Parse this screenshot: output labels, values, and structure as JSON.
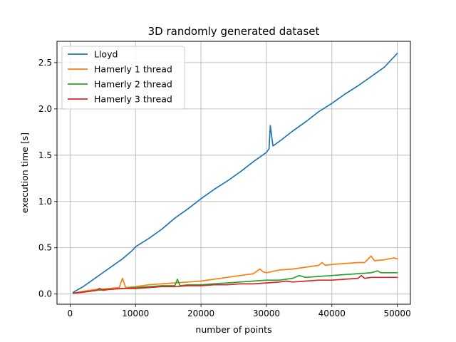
{
  "chart_data": {
    "type": "line",
    "title": "3D randomly generated dataset",
    "xlabel": "number of points",
    "ylabel": "execution time [s]",
    "xlim": [
      -2000,
      52000
    ],
    "ylim": [
      -0.11,
      2.73
    ],
    "xticks": [
      0,
      10000,
      20000,
      30000,
      40000,
      50000
    ],
    "xtick_labels": [
      "0",
      "10000",
      "20000",
      "30000",
      "40000",
      "50000"
    ],
    "yticks": [
      0.0,
      0.5,
      1.0,
      1.5,
      2.0,
      2.5
    ],
    "ytick_labels": [
      "0.0",
      "0.5",
      "1.0",
      "1.5",
      "2.0",
      "2.5"
    ],
    "grid": true,
    "legend_position": "top-left",
    "series": [
      {
        "name": "Lloyd",
        "color": "#1f77b4",
        "points": [
          [
            500,
            0.02
          ],
          [
            2000,
            0.08
          ],
          [
            4000,
            0.18
          ],
          [
            6000,
            0.28
          ],
          [
            8000,
            0.38
          ],
          [
            9500,
            0.47
          ],
          [
            10000,
            0.51
          ],
          [
            12000,
            0.6
          ],
          [
            14000,
            0.7
          ],
          [
            16000,
            0.82
          ],
          [
            18000,
            0.92
          ],
          [
            20000,
            1.03
          ],
          [
            22000,
            1.13
          ],
          [
            24000,
            1.22
          ],
          [
            26000,
            1.32
          ],
          [
            28000,
            1.43
          ],
          [
            30000,
            1.53
          ],
          [
            30400,
            1.57
          ],
          [
            30600,
            1.82
          ],
          [
            31000,
            1.6
          ],
          [
            32000,
            1.65
          ],
          [
            34000,
            1.76
          ],
          [
            36000,
            1.86
          ],
          [
            38000,
            1.97
          ],
          [
            40000,
            2.06
          ],
          [
            42000,
            2.16
          ],
          [
            44000,
            2.25
          ],
          [
            46000,
            2.35
          ],
          [
            48000,
            2.45
          ],
          [
            50000,
            2.6
          ]
        ]
      },
      {
        "name": "Hamerly 1 thread",
        "color": "#ff7f0e",
        "points": [
          [
            500,
            0.01
          ],
          [
            2000,
            0.03
          ],
          [
            4000,
            0.05
          ],
          [
            6000,
            0.06
          ],
          [
            7500,
            0.07
          ],
          [
            8000,
            0.17
          ],
          [
            8500,
            0.07
          ],
          [
            10000,
            0.08
          ],
          [
            12000,
            0.1
          ],
          [
            14000,
            0.11
          ],
          [
            16000,
            0.12
          ],
          [
            18000,
            0.13
          ],
          [
            20000,
            0.14
          ],
          [
            22000,
            0.16
          ],
          [
            24000,
            0.18
          ],
          [
            26000,
            0.2
          ],
          [
            28000,
            0.22
          ],
          [
            29000,
            0.27
          ],
          [
            29500,
            0.24
          ],
          [
            30000,
            0.23
          ],
          [
            32000,
            0.26
          ],
          [
            34000,
            0.27
          ],
          [
            36000,
            0.29
          ],
          [
            38000,
            0.31
          ],
          [
            38500,
            0.34
          ],
          [
            39000,
            0.31
          ],
          [
            40000,
            0.32
          ],
          [
            42000,
            0.33
          ],
          [
            44000,
            0.34
          ],
          [
            45000,
            0.34
          ],
          [
            46000,
            0.41
          ],
          [
            46500,
            0.36
          ],
          [
            48000,
            0.37
          ],
          [
            49500,
            0.39
          ],
          [
            50000,
            0.38
          ]
        ]
      },
      {
        "name": "Hamerly 2 thread",
        "color": "#2ca02c",
        "points": [
          [
            500,
            0.01
          ],
          [
            2000,
            0.02
          ],
          [
            4000,
            0.04
          ],
          [
            6000,
            0.05
          ],
          [
            8000,
            0.06
          ],
          [
            10000,
            0.07
          ],
          [
            12000,
            0.08
          ],
          [
            14000,
            0.09
          ],
          [
            16000,
            0.09
          ],
          [
            16400,
            0.16
          ],
          [
            16800,
            0.09
          ],
          [
            18000,
            0.1
          ],
          [
            20000,
            0.1
          ],
          [
            22000,
            0.11
          ],
          [
            24000,
            0.12
          ],
          [
            26000,
            0.13
          ],
          [
            28000,
            0.14
          ],
          [
            30000,
            0.15
          ],
          [
            32000,
            0.15
          ],
          [
            34000,
            0.17
          ],
          [
            35000,
            0.2
          ],
          [
            36000,
            0.18
          ],
          [
            38000,
            0.19
          ],
          [
            40000,
            0.2
          ],
          [
            42000,
            0.21
          ],
          [
            44000,
            0.22
          ],
          [
            46000,
            0.23
          ],
          [
            47000,
            0.25
          ],
          [
            47500,
            0.23
          ],
          [
            50000,
            0.23
          ]
        ]
      },
      {
        "name": "Hamerly 3 thread",
        "color": "#d62728",
        "points": [
          [
            500,
            0.01
          ],
          [
            2000,
            0.02
          ],
          [
            4000,
            0.04
          ],
          [
            4500,
            0.06
          ],
          [
            5000,
            0.04
          ],
          [
            6000,
            0.05
          ],
          [
            8000,
            0.06
          ],
          [
            10000,
            0.06
          ],
          [
            12000,
            0.07
          ],
          [
            14000,
            0.08
          ],
          [
            16000,
            0.08
          ],
          [
            18000,
            0.09
          ],
          [
            20000,
            0.09
          ],
          [
            22000,
            0.1
          ],
          [
            24000,
            0.1
          ],
          [
            26000,
            0.11
          ],
          [
            28000,
            0.11
          ],
          [
            30000,
            0.12
          ],
          [
            32000,
            0.13
          ],
          [
            33000,
            0.14
          ],
          [
            34000,
            0.13
          ],
          [
            36000,
            0.14
          ],
          [
            38000,
            0.15
          ],
          [
            40000,
            0.15
          ],
          [
            42000,
            0.16
          ],
          [
            44000,
            0.17
          ],
          [
            44500,
            0.2
          ],
          [
            45000,
            0.17
          ],
          [
            46000,
            0.18
          ],
          [
            48000,
            0.18
          ],
          [
            50000,
            0.18
          ]
        ]
      }
    ]
  }
}
